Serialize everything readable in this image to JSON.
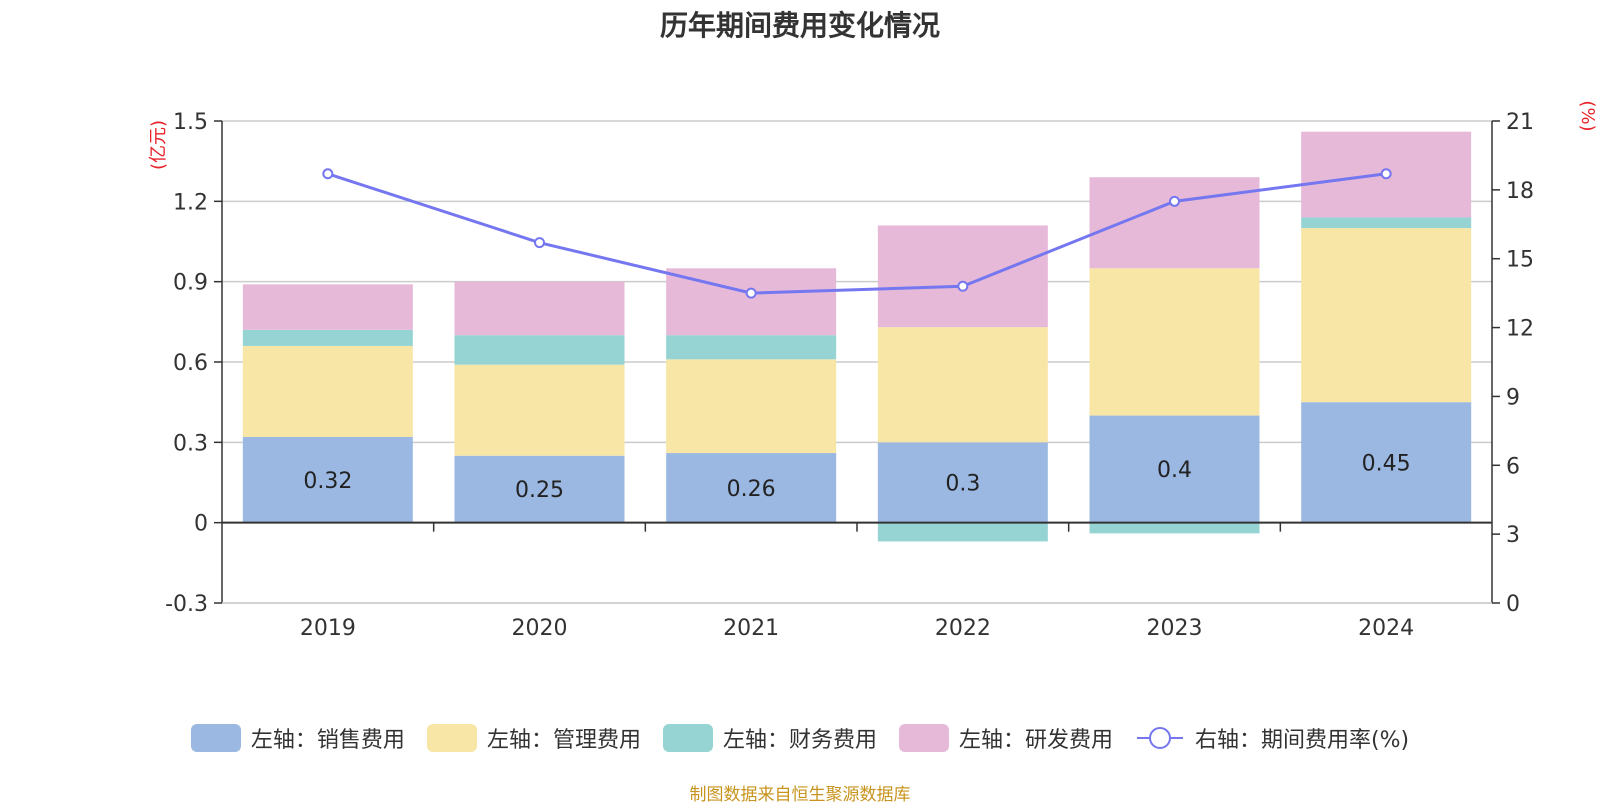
{
  "chart_data": {
    "type": "bar",
    "title": "历年期间费用变化情况",
    "categories": [
      "2019",
      "2020",
      "2021",
      "2022",
      "2023",
      "2024"
    ],
    "left_axis": {
      "unit": "(亿元)",
      "ylim": [
        -0.3,
        1.5
      ],
      "ticks": [
        "-0.3",
        "0",
        "0.3",
        "0.6",
        "0.9",
        "1.2",
        "1.5"
      ]
    },
    "right_axis": {
      "unit": "(%)",
      "ylim": [
        0,
        21
      ],
      "ticks": [
        "0",
        "3",
        "6",
        "9",
        "12",
        "15",
        "18",
        "21"
      ]
    },
    "series": [
      {
        "name": "左轴：销售费用",
        "kind": "bar",
        "color": "#9bb8e2",
        "values": [
          0.32,
          0.25,
          0.26,
          0.3,
          0.4,
          0.45
        ],
        "labels": [
          "0.32",
          "0.25",
          "0.26",
          "0.3",
          "0.4",
          "0.45"
        ]
      },
      {
        "name": "左轴：管理费用",
        "kind": "bar",
        "color": "#f8e6a6",
        "values": [
          0.34,
          0.34,
          0.35,
          0.43,
          0.55,
          0.65
        ]
      },
      {
        "name": "左轴：财务费用",
        "kind": "bar",
        "color": "#96d4d4",
        "values": [
          0.06,
          0.11,
          0.09,
          -0.07,
          -0.04,
          0.04
        ]
      },
      {
        "name": "左轴：研发费用",
        "kind": "bar",
        "color": "#e7b9d9",
        "values": [
          0.17,
          0.2,
          0.25,
          0.38,
          0.34,
          0.32
        ]
      },
      {
        "name": "右轴：期间费用率(%)",
        "kind": "line",
        "axis": "right",
        "color": "#7477ef",
        "values": [
          18.7,
          15.7,
          13.5,
          13.8,
          17.5,
          18.7
        ]
      }
    ],
    "grid": true,
    "legend_position": "bottom"
  },
  "source_note": "制图数据来自恒生聚源数据库"
}
